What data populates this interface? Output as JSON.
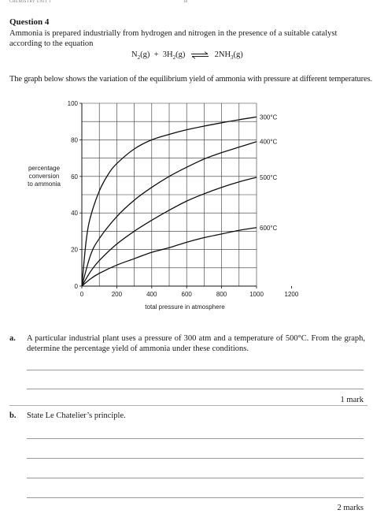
{
  "header": {
    "left": "CHEMISTRY UNIT 1",
    "page": "18"
  },
  "question": {
    "title": "Question 4",
    "intro": "Ammonia is prepared industrially from hydrogen and nitrogen in the presence of a suitable catalyst according to the equation",
    "equation": {
      "n2": "N",
      "n2_sub": "2",
      "n2_state": "(g)",
      "plus": "+",
      "h2_coef": "3H",
      "h2_sub": "2",
      "h2_state": "(g)",
      "nh3_coef": "2NH",
      "nh3_sub": "3",
      "nh3_state": "(g)"
    },
    "graph_intro": "The graph below shows the variation of the equilibrium yield of ammonia with pressure at different temperatures."
  },
  "chart_data": {
    "type": "line",
    "xlabel": "total pressure in atmosphere",
    "ylabel": [
      "percentage",
      "conversion",
      "to ammonia"
    ],
    "xlim": [
      0,
      1200
    ],
    "ylim": [
      0,
      100
    ],
    "x_ticks": [
      0,
      200,
      400,
      600,
      800,
      1000,
      1200
    ],
    "y_ticks": [
      0,
      20,
      40,
      60,
      80,
      100
    ],
    "grid": true,
    "series": [
      {
        "name": "300°C",
        "points": [
          [
            0,
            0
          ],
          [
            25,
            25
          ],
          [
            50,
            38
          ],
          [
            100,
            52
          ],
          [
            150,
            61
          ],
          [
            200,
            67
          ],
          [
            300,
            75
          ],
          [
            400,
            80
          ],
          [
            500,
            83
          ],
          [
            600,
            85.5
          ],
          [
            700,
            87.5
          ],
          [
            800,
            89.3
          ],
          [
            900,
            91
          ],
          [
            1000,
            92.5
          ]
        ]
      },
      {
        "name": "400°C",
        "points": [
          [
            0,
            0
          ],
          [
            50,
            17
          ],
          [
            100,
            26
          ],
          [
            200,
            38
          ],
          [
            300,
            47
          ],
          [
            400,
            54
          ],
          [
            500,
            60
          ],
          [
            600,
            65
          ],
          [
            700,
            69.5
          ],
          [
            800,
            73
          ],
          [
            900,
            76
          ],
          [
            1000,
            79
          ]
        ]
      },
      {
        "name": "500°C",
        "points": [
          [
            0,
            0
          ],
          [
            50,
            8
          ],
          [
            100,
            14
          ],
          [
            200,
            23
          ],
          [
            300,
            30
          ],
          [
            400,
            36
          ],
          [
            500,
            41.5
          ],
          [
            600,
            46.5
          ],
          [
            700,
            50.5
          ],
          [
            800,
            54
          ],
          [
            900,
            57
          ],
          [
            1000,
            59.5
          ]
        ]
      },
      {
        "name": "600°C",
        "points": [
          [
            0,
            0
          ],
          [
            50,
            4
          ],
          [
            100,
            7
          ],
          [
            200,
            11.5
          ],
          [
            300,
            15
          ],
          [
            400,
            18.5
          ],
          [
            500,
            21
          ],
          [
            600,
            24
          ],
          [
            700,
            26.5
          ],
          [
            800,
            28.5
          ],
          [
            900,
            30.5
          ],
          [
            1000,
            32
          ]
        ]
      }
    ]
  },
  "parts": [
    {
      "letter": "a.",
      "text": "A particular industrial plant uses a pressure of 300 atm and a temperature of 500°C. From the graph, determine the percentage yield of ammonia under these conditions.",
      "marks": "1 mark"
    },
    {
      "letter": "b.",
      "text": "State Le Chatelier’s principle.",
      "marks": "2 marks"
    }
  ]
}
